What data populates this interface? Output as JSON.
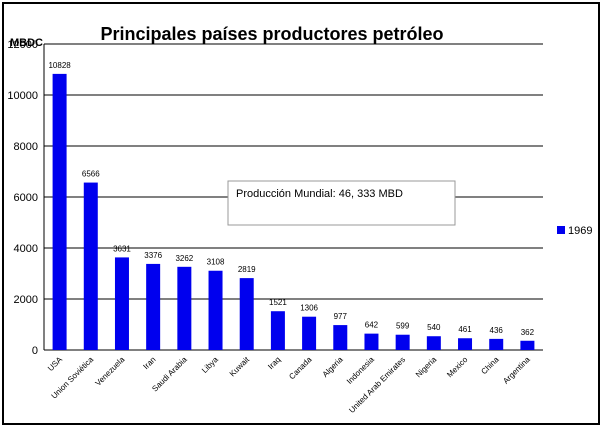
{
  "chart_data": {
    "type": "bar",
    "title": "Principales países productores petróleo",
    "ylabel": "MBDC",
    "xlabel": "",
    "ylim": [
      0,
      12000
    ],
    "yticks": [
      0,
      2000,
      4000,
      6000,
      8000,
      10000,
      12000
    ],
    "grid": true,
    "legend_position": "right",
    "bar_color": "#0000ee",
    "categories": [
      "USA",
      "Union Soviética",
      "Venezuela",
      "Iran",
      "Saudi Arabia",
      "Libya",
      "Kuwait",
      "Iraq",
      "Canada",
      "Algeria",
      "Indonesia",
      "United Arab Emirates",
      "Nigeria",
      "Mexico",
      "China",
      "Argentina"
    ],
    "series": [
      {
        "name": "1969",
        "values": [
          10828,
          6566,
          3631,
          3376,
          3262,
          3108,
          2819,
          1521,
          1306,
          977,
          642,
          599,
          540,
          461,
          436,
          362
        ]
      }
    ],
    "annotation": "Producción Mundial: 46, 333 MBD"
  }
}
